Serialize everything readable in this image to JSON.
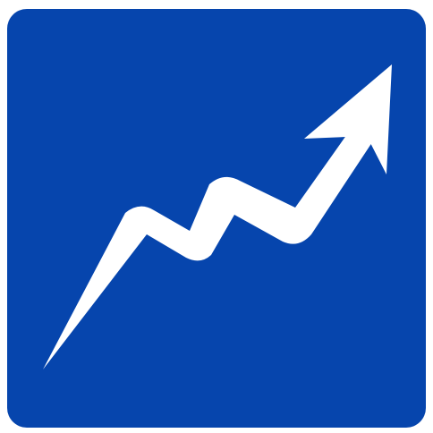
{
  "icon": {
    "name": "trending-up-icon",
    "background_color": "#0645AD",
    "foreground_color": "#FFFFFF",
    "page_background": "#FFFFFF"
  }
}
